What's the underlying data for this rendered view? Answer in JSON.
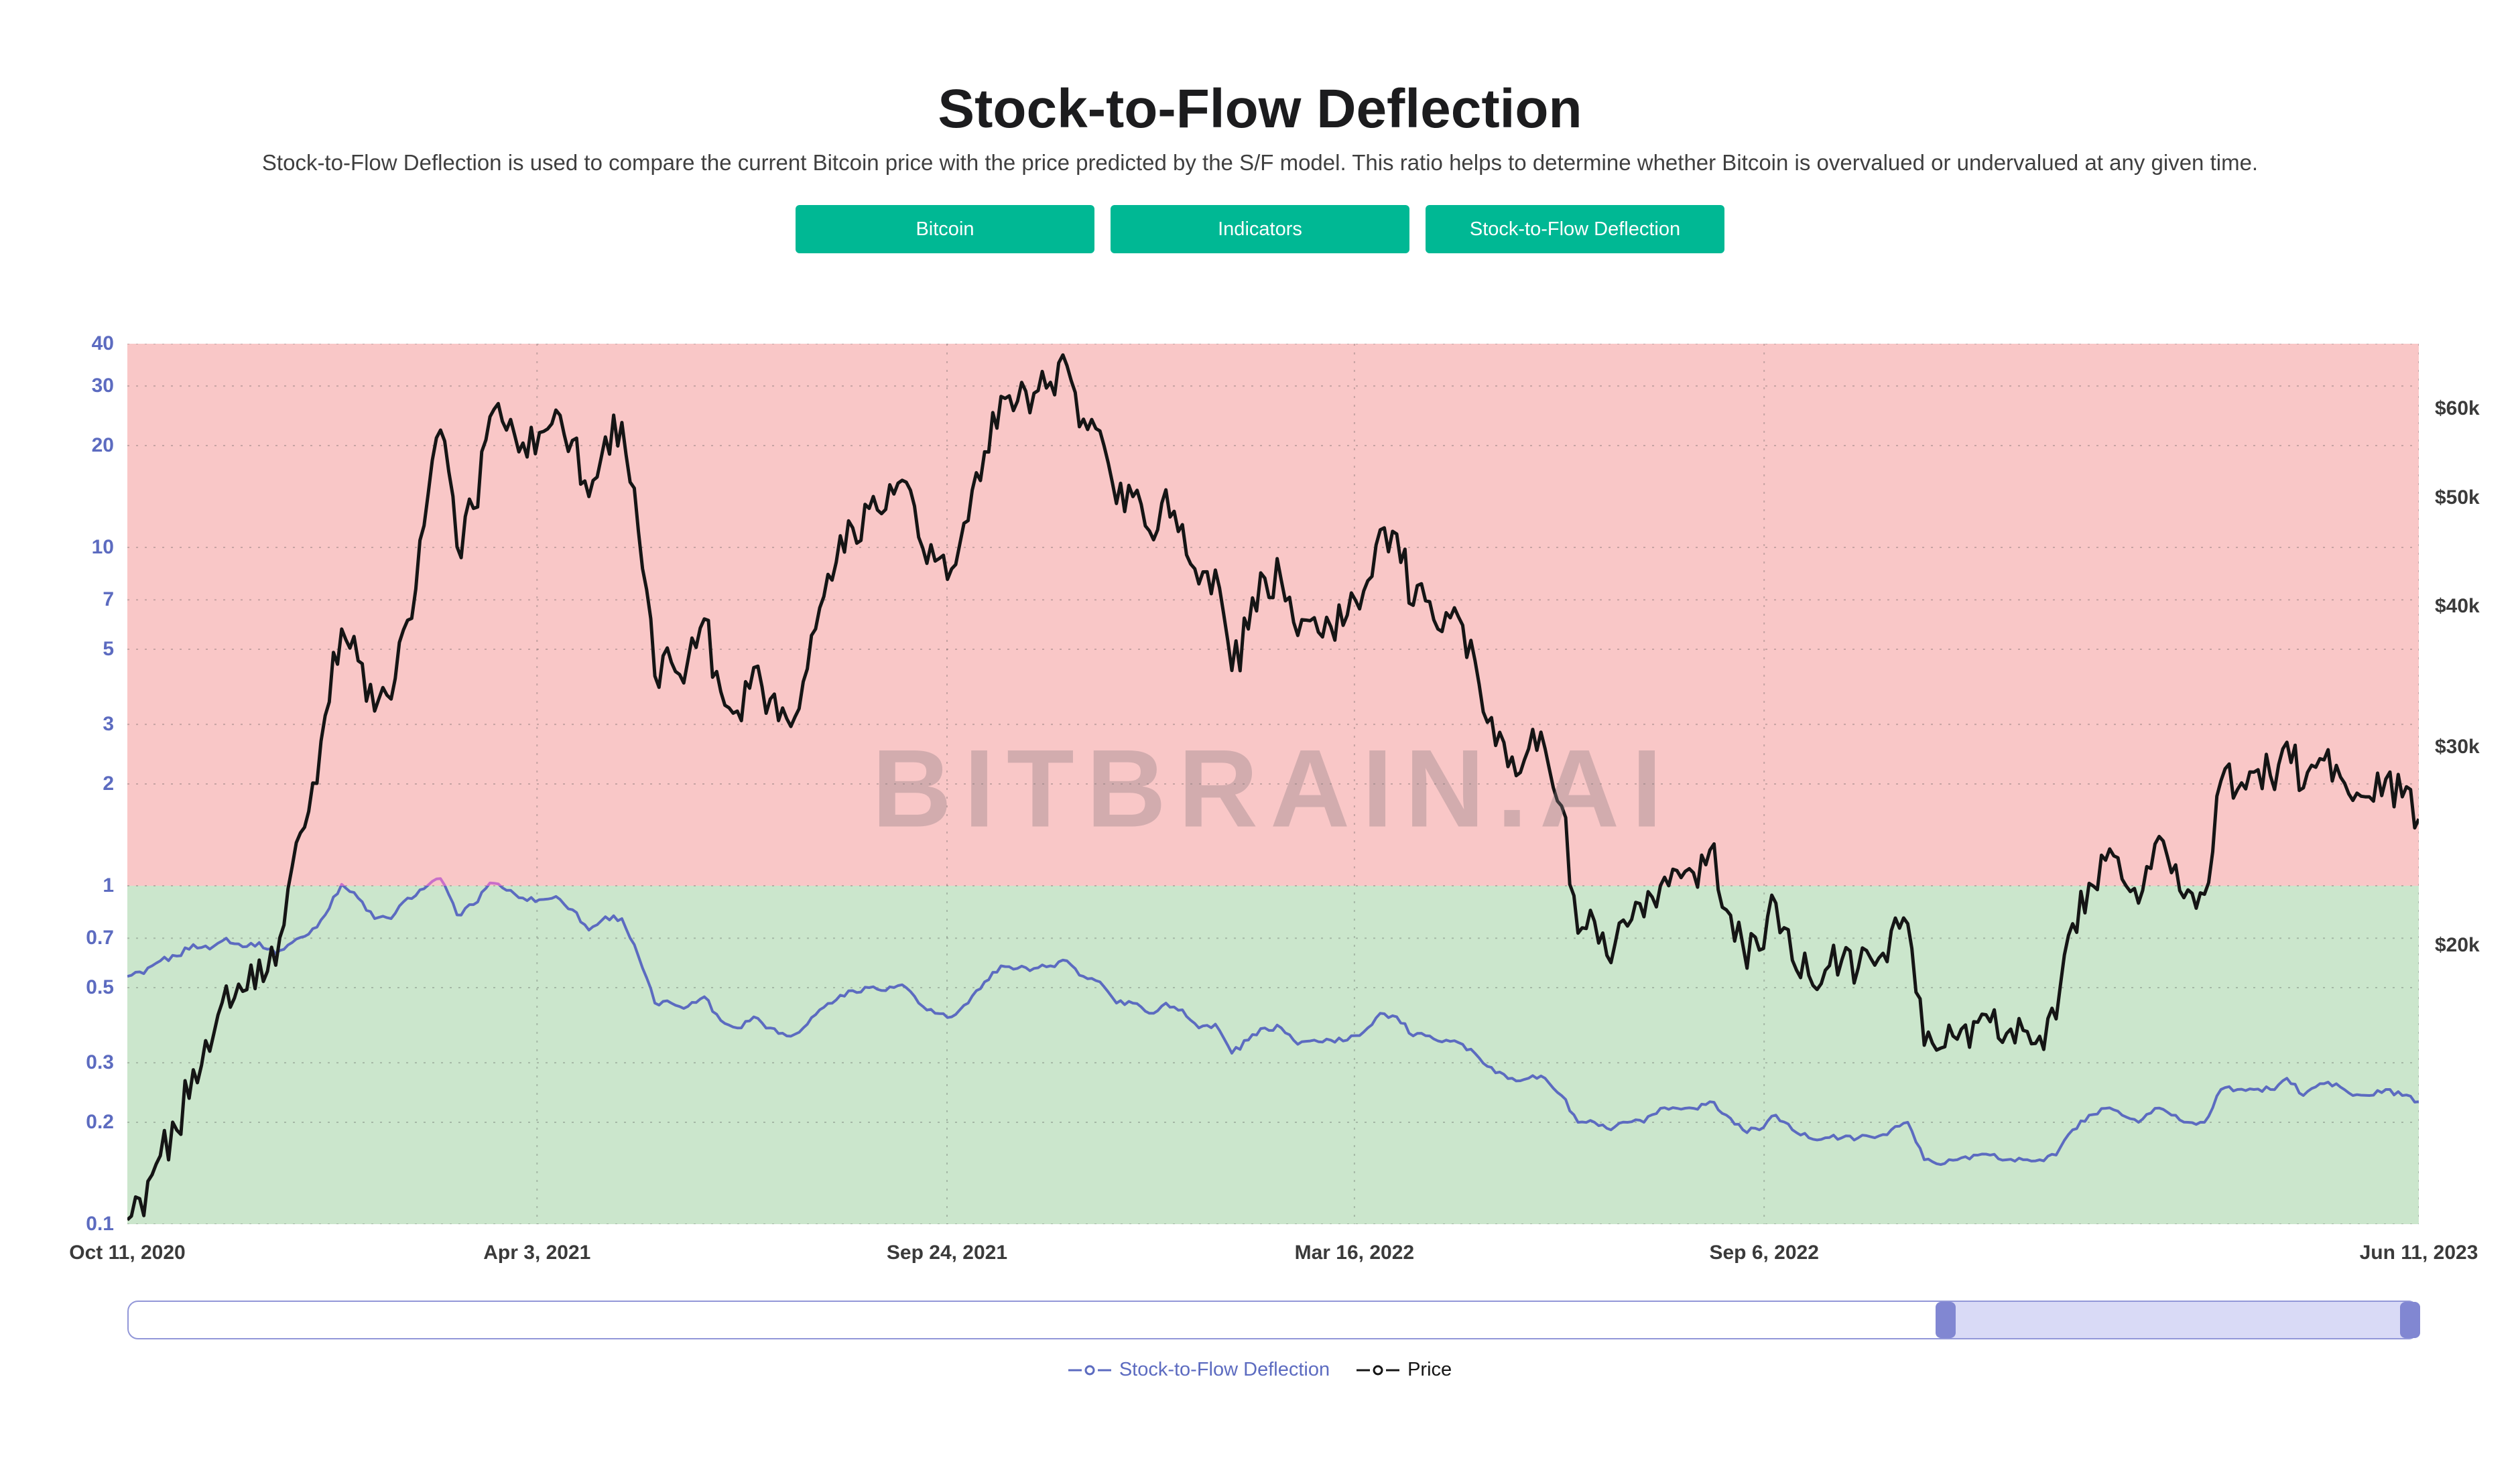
{
  "page": {
    "title": "Stock-to-Flow Deflection",
    "subtitle": "Stock-to-Flow Deflection is used to compare the current Bitcoin price with the price predicted by the S/F model. This ratio helps to determine whether Bitcoin is overvalued or undervalued at any given time."
  },
  "buttons": [
    {
      "label": "Bitcoin"
    },
    {
      "label": "Indicators"
    },
    {
      "label": "Stock-to-Flow Deflection"
    }
  ],
  "watermark": "BITBRAIN.AI",
  "colors": {
    "button_teal": "#00b894",
    "overvalued_band": "#f9c7c7",
    "undervalued_band": "#cbe6cc",
    "deflection_line": "#5c6bc0",
    "deflection_above_one": "#c96fc9",
    "price_line": "#151515",
    "axis_label_blue": "#5c6bc0",
    "navigator_fill": "#d9daf6",
    "navigator_handle": "#8187d2"
  },
  "legend": [
    {
      "label": "Stock-to-Flow Deflection",
      "color": "#5c6bc0"
    },
    {
      "label": "Price",
      "color": "#151515"
    }
  ],
  "navigator": {
    "selected_from": 0.793,
    "selected_to": 1.0
  },
  "chart_data": {
    "type": "line",
    "title": "Stock-to-Flow Deflection",
    "x_start_date": "2020-10-11",
    "x_end_date": "2023-06-11",
    "x_interval_days": 7,
    "x_axis_ticks": [
      {
        "label": "Oct 11, 2020",
        "pos": 0
      },
      {
        "label": "Apr 3, 2021",
        "pos": 0.1788
      },
      {
        "label": "Sep 24, 2021",
        "pos": 0.3577
      },
      {
        "label": "Mar 16, 2022",
        "pos": 0.5355
      },
      {
        "label": "Sep 6, 2022",
        "pos": 0.7143
      },
      {
        "label": "Jun 11, 2023",
        "pos": 1
      }
    ],
    "left_axis": {
      "scale": "log",
      "top": 40,
      "bottom": 0.1,
      "threshold": 1,
      "ticks": [
        40,
        30,
        20,
        10,
        7,
        5,
        3,
        2,
        1,
        0.7,
        0.5,
        0.3,
        0.2,
        0.1
      ]
    },
    "right_axis": {
      "scale": "log",
      "top": 68500,
      "bottom": 11300,
      "ticks": [
        {
          "label": "$60k",
          "value": 60000
        },
        {
          "label": "$50k",
          "value": 50000
        },
        {
          "label": "$40k",
          "value": 40000
        },
        {
          "label": "$30k",
          "value": 30000
        },
        {
          "label": "$20k",
          "value": 20000
        }
      ]
    },
    "bands": {
      "above": {
        "color": "#f9c7c7"
      },
      "below": {
        "color": "#cbe6cc"
      }
    },
    "series": [
      {
        "name": "Stock-to-Flow Deflection",
        "axis": "left",
        "color": "#5c6bc0",
        "above_threshold_color": "#c96fc9",
        "values": [
          0.54,
          0.55,
          0.6,
          0.62,
          0.67,
          0.65,
          0.7,
          0.66,
          0.68,
          0.63,
          0.68,
          0.72,
          0.82,
          1.01,
          0.92,
          0.8,
          0.8,
          0.92,
          0.98,
          1.05,
          0.82,
          0.88,
          1.02,
          0.97,
          0.92,
          0.91,
          0.93,
          0.85,
          0.74,
          0.81,
          0.8,
          0.62,
          0.45,
          0.45,
          0.44,
          0.47,
          0.4,
          0.38,
          0.41,
          0.38,
          0.36,
          0.38,
          0.43,
          0.46,
          0.49,
          0.5,
          0.49,
          0.51,
          0.45,
          0.42,
          0.41,
          0.45,
          0.52,
          0.58,
          0.57,
          0.57,
          0.58,
          0.6,
          0.54,
          0.52,
          0.45,
          0.45,
          0.42,
          0.45,
          0.43,
          0.38,
          0.39,
          0.32,
          0.35,
          0.38,
          0.38,
          0.34,
          0.35,
          0.35,
          0.35,
          0.37,
          0.42,
          0.41,
          0.36,
          0.36,
          0.35,
          0.34,
          0.31,
          0.28,
          0.27,
          0.27,
          0.27,
          0.24,
          0.2,
          0.2,
          0.19,
          0.2,
          0.2,
          0.22,
          0.22,
          0.22,
          0.23,
          0.21,
          0.19,
          0.19,
          0.21,
          0.19,
          0.18,
          0.18,
          0.18,
          0.18,
          0.18,
          0.19,
          0.2,
          0.155,
          0.15,
          0.155,
          0.16,
          0.16,
          0.155,
          0.155,
          0.155,
          0.16,
          0.19,
          0.21,
          0.22,
          0.21,
          0.2,
          0.22,
          0.21,
          0.2,
          0.2,
          0.25,
          0.25,
          0.25,
          0.25,
          0.27,
          0.24,
          0.26,
          0.26,
          0.24,
          0.24,
          0.25,
          0.24,
          0.23
        ]
      },
      {
        "name": "Price",
        "axis": "right",
        "unit": "USD",
        "color": "#151515",
        "values": [
          11400,
          11500,
          13000,
          13700,
          15500,
          16100,
          18400,
          18200,
          19400,
          19200,
          23500,
          26300,
          32000,
          38200,
          35800,
          32300,
          33100,
          38900,
          47200,
          57400,
          45200,
          48900,
          59000,
          57400,
          55900,
          57100,
          59800,
          56200,
          50100,
          56600,
          58300,
          46700,
          34700,
          35700,
          35800,
          39000,
          33600,
          32300,
          35300,
          33100,
          31800,
          34300,
          39900,
          43800,
          47000,
          48900,
          48800,
          51800,
          46100,
          43900,
          43200,
          47700,
          54900,
          61500,
          60900,
          61900,
          63300,
          65500,
          58700,
          57300,
          49400,
          50100,
          46700,
          50800,
          47300,
          41900,
          43100,
          35100,
          38200,
          42400,
          42200,
          37700,
          39100,
          38400,
          39300,
          41300,
          46800,
          46400,
          40100,
          40400,
          39500,
          38500,
          34100,
          30100,
          29400,
          29900,
          29900,
          26600,
          20500,
          21000,
          19300,
          20800,
          21200,
          22600,
          23300,
          23200,
          24300,
          21500,
          20000,
          19800,
          21800,
          19400,
          18800,
          19000,
          19400,
          19100,
          19200,
          20600,
          20900,
          16300,
          16200,
          16500,
          17100,
          17100,
          16700,
          16800,
          16600,
          17200,
          20900,
          22700,
          23800,
          22900,
          21800,
          24600,
          23200,
          22400,
          22200,
          28000,
          27500,
          28500,
          28300,
          30300,
          27600,
          29300,
          28900,
          26900,
          27100,
          28100,
          27100,
          25900
        ]
      }
    ]
  }
}
